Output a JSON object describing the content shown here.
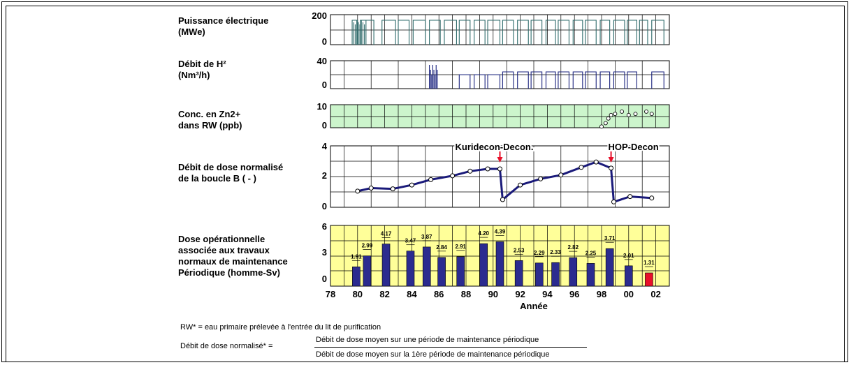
{
  "panels": [
    {
      "id": "power",
      "label": "Puissance électrique\n(MWe)",
      "ticks": [
        "200",
        "0"
      ],
      "ymax": 200
    },
    {
      "id": "h2",
      "label": "Débit de H²\n(Nm³/h)",
      "ticks": [
        "40",
        "0"
      ],
      "ymax": 40
    },
    {
      "id": "zn",
      "label": "Conc. en Zn2+\ndans RW (ppb)",
      "ticks": [
        "10",
        "0"
      ],
      "ymax": 10
    },
    {
      "id": "dose",
      "label": "Débit de dose normalisé\nde la boucle B ( - )",
      "ticks": [
        "4",
        "2",
        "0"
      ],
      "ymax": 4
    },
    {
      "id": "opdose",
      "label": "Dose opérationnelle\nassociée aux travaux\nnormaux de maintenance\nPériodique (homme-Sv)",
      "ticks": [
        "6",
        "3",
        "0"
      ],
      "ymax": 6
    }
  ],
  "x_tick_labels": [
    "78",
    "80",
    "82",
    "84",
    "86",
    "88",
    "90",
    "92",
    "94",
    "96",
    "98",
    "00",
    "02"
  ],
  "xlabel": "Année",
  "annotations": {
    "kuridecon": "Kuridecon-Decon.",
    "hop": "HOP-Decon"
  },
  "colors": {
    "power": "#2e6b6b",
    "h2": "#1a237e",
    "zn_bg": "#ccf5cc",
    "op_bg": "#ffff99",
    "bar": "#2b2b8f",
    "bar_last": "#e8102a",
    "line": "#1a1a7a",
    "arrow": "#e8102a"
  },
  "chart_data": [
    {
      "type": "area",
      "name": "power",
      "xlim": [
        1978,
        2003
      ],
      "ylim": [
        0,
        200
      ]
    },
    {
      "type": "area",
      "name": "h2",
      "xlim": [
        1978,
        2003
      ],
      "ylim": [
        0,
        40
      ]
    },
    {
      "type": "scatter",
      "name": "zn",
      "xlim": [
        1978,
        2003
      ],
      "ylim": [
        0,
        10
      ],
      "points": [
        [
          1998.0,
          0.5
        ],
        [
          1998.3,
          2
        ],
        [
          1998.5,
          4
        ],
        [
          1998.7,
          5.5
        ],
        [
          1999.0,
          6
        ],
        [
          1999.5,
          7
        ],
        [
          2000.0,
          5.5
        ],
        [
          2000.5,
          6
        ],
        [
          2001.3,
          7
        ],
        [
          2001.7,
          6
        ]
      ]
    },
    {
      "type": "line",
      "name": "dose",
      "xlim": [
        1978,
        2003
      ],
      "ylim": [
        0,
        4
      ],
      "points": [
        [
          1980,
          1.05
        ],
        [
          1981,
          1.25
        ],
        [
          1982.6,
          1.2
        ],
        [
          1984,
          1.45
        ],
        [
          1985.4,
          1.8
        ],
        [
          1987,
          2.05
        ],
        [
          1988.3,
          2.35
        ],
        [
          1989.6,
          2.5
        ],
        [
          1990.5,
          2.5
        ],
        [
          1990.7,
          0.5
        ],
        [
          1992,
          1.45
        ],
        [
          1993.5,
          1.85
        ],
        [
          1995,
          2.1
        ],
        [
          1996.5,
          2.6
        ],
        [
          1997.6,
          2.95
        ],
        [
          1998.7,
          2.55
        ],
        [
          1998.9,
          0.35
        ],
        [
          2000.1,
          0.7
        ],
        [
          2001.7,
          0.6
        ]
      ],
      "arrows": [
        1990.5,
        1998.7
      ]
    },
    {
      "type": "bar",
      "name": "opdose",
      "xlim": [
        1978,
        2003
      ],
      "ylim": [
        0,
        6
      ],
      "x": [
        1979.9,
        1980.7,
        1982.1,
        1983.9,
        1985.1,
        1986.2,
        1987.6,
        1989.3,
        1990.5,
        1991.9,
        1993.4,
        1994.6,
        1995.9,
        1997.2,
        1998.6,
        2000.0,
        2001.5
      ],
      "values": [
        1.91,
        2.99,
        4.17,
        3.47,
        3.87,
        2.84,
        2.91,
        4.2,
        4.39,
        2.53,
        2.29,
        2.33,
        2.82,
        2.25,
        3.71,
        2.01,
        1.31
      ],
      "value_labels": [
        "1.91",
        "2.99",
        "4.17",
        "3.47",
        "3.87",
        "2.84",
        "2.91",
        "4.20",
        "4.39",
        "2.53",
        "2.29",
        "2.33",
        "2.82",
        "2.25",
        "3.71",
        "2.01",
        "1.31"
      ]
    }
  ],
  "footnotes": {
    "rw": "RW* = eau primaire prélevée à l'entrée du lit de purification",
    "def_label": "Débit de dose normalisé* =",
    "numerator": "Débit de dose moyen sur une période de maintenance périodique",
    "denominator": "Débit de dose moyen sur la 1ère période de maintenance périodique"
  }
}
